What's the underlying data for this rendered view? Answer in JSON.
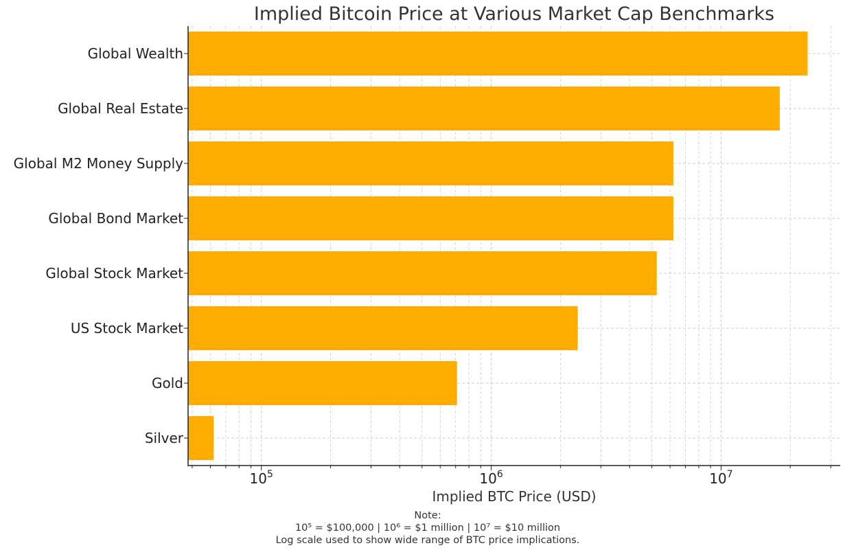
{
  "chart_data": {
    "type": "bar",
    "orientation": "horizontal",
    "scale": "log",
    "title": "Implied Bitcoin Price at Various Market Cap Benchmarks",
    "xlabel": "Implied BTC Price (USD)",
    "ylabel": "",
    "categories": [
      "Global Wealth",
      "Global Real Estate",
      "Global M2 Money Supply",
      "Global Bond Market",
      "Global Stock Market",
      "US Stock Market",
      "Gold",
      "Silver"
    ],
    "values": [
      23800000,
      18000000,
      6200000,
      6200000,
      5250000,
      2380000,
      710000,
      62000
    ],
    "xlim": [
      48000,
      33000000
    ],
    "x_ticks": [
      {
        "value": 100000,
        "base": "10",
        "exp": "5"
      },
      {
        "value": 1000000,
        "base": "10",
        "exp": "6"
      },
      {
        "value": 10000000,
        "base": "10",
        "exp": "7"
      }
    ],
    "grid": true,
    "bar_color": "#ffad00"
  },
  "note": {
    "title": "Note:",
    "line1": "10⁵ = $100,000 | 10⁶ = $1 million | 10⁷ = $10 million",
    "line2": "Log scale used to show wide range of BTC price implications."
  }
}
